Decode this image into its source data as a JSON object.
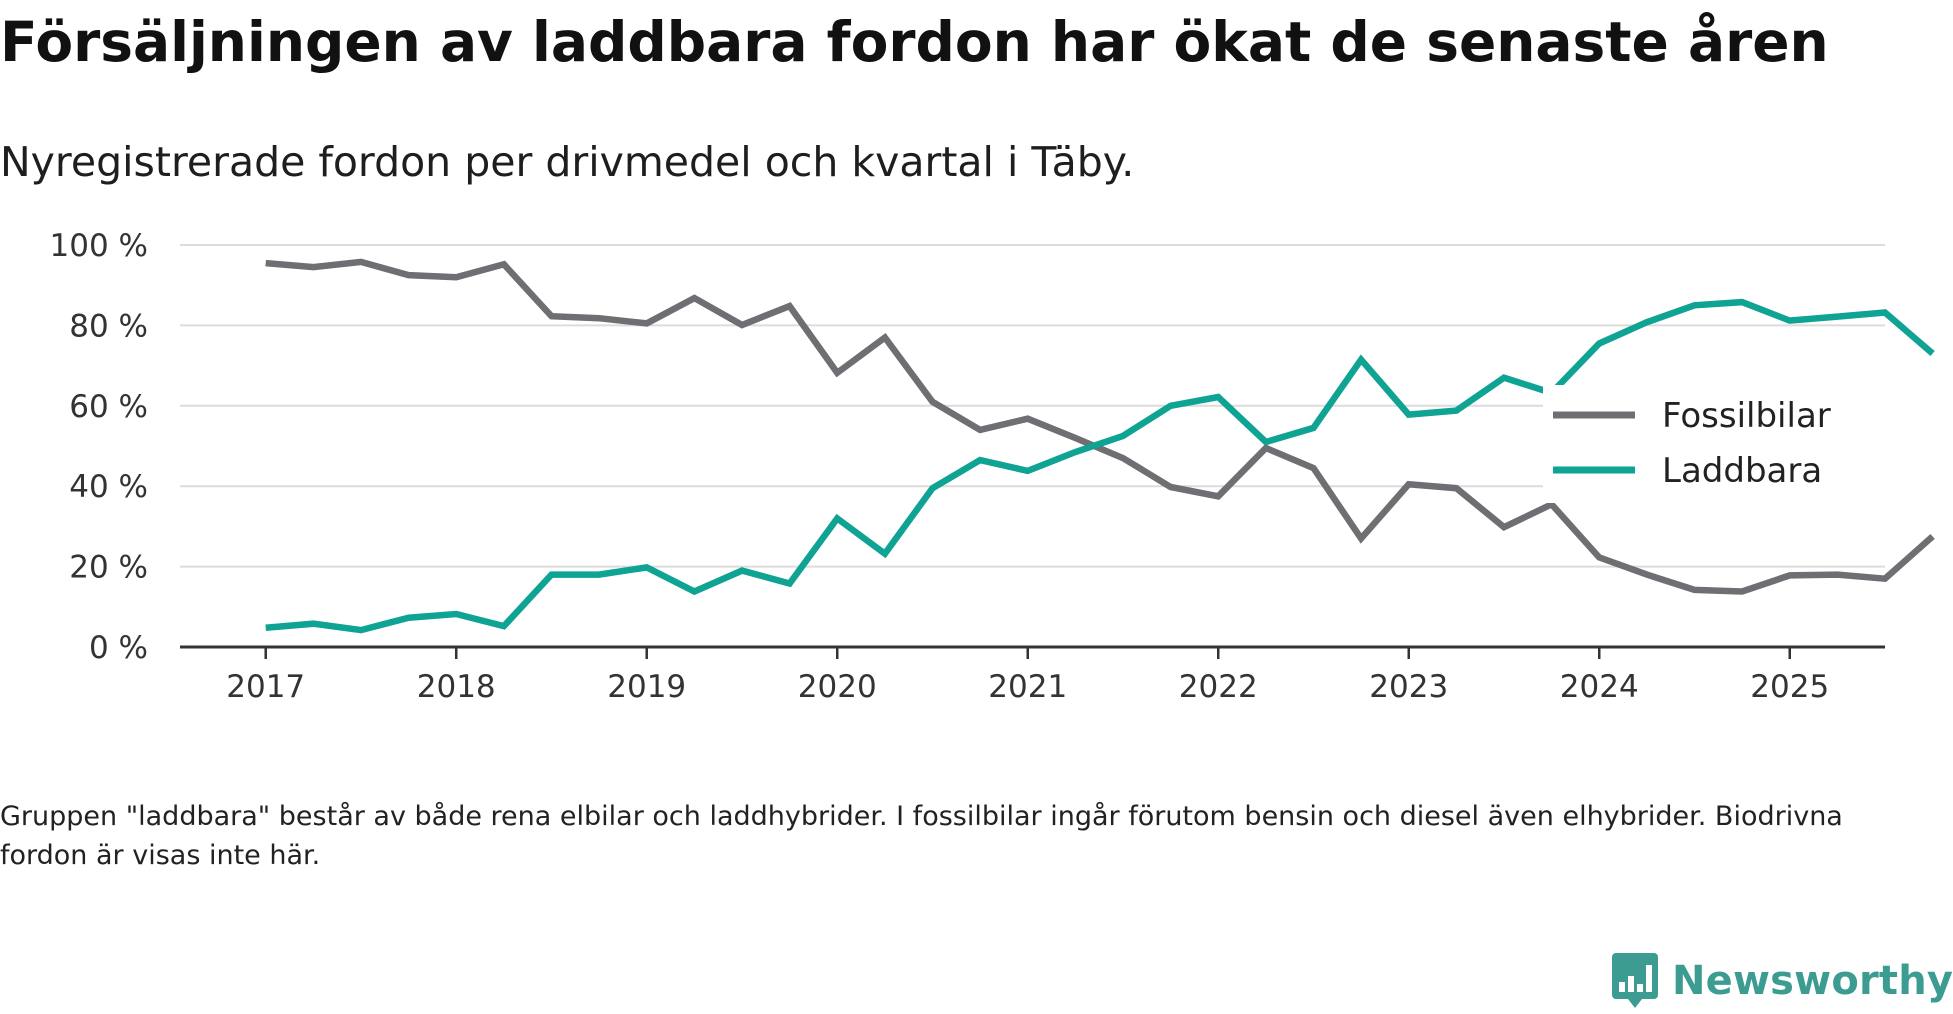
{
  "title": "Försäljningen av laddbara fordon har ökat de senaste åren",
  "subtitle": "Nyregistrerade fordon per drivmedel och kvartal i Täby.",
  "note": "Gruppen \"laddbara\" består av både rena elbilar och laddhybrider. I fossilbilar ingår förutom bensin och diesel även elhybrider. Biodrivna fordon är visas inte här.",
  "brand": {
    "name": "Newsworthy",
    "icon": "bar-chart-bubble-icon",
    "color": "#3d9c91"
  },
  "chart_data": {
    "type": "line",
    "title": "Försäljningen av laddbara fordon har ökat de senaste åren",
    "subtitle": "Nyregistrerade fordon per drivmedel och kvartal i Täby.",
    "xlabel": "",
    "ylabel": "",
    "ylim": [
      0,
      100
    ],
    "y_ticks": [
      0,
      20,
      40,
      60,
      80,
      100
    ],
    "y_tick_labels": [
      "0 %",
      "20 %",
      "40 %",
      "60 %",
      "80 %",
      "100 %"
    ],
    "x_ticks": [
      2017,
      2018,
      2019,
      2020,
      2021,
      2022,
      2023,
      2024,
      2025
    ],
    "x_tick_labels": [
      "2017",
      "2018",
      "2019",
      "2020",
      "2021",
      "2022",
      "2023",
      "2024",
      "2025"
    ],
    "x_range": [
      2016.55,
      2025.5
    ],
    "grid": true,
    "legend_position": "right",
    "x": [
      2017.0,
      2017.25,
      2017.5,
      2017.75,
      2018.0,
      2018.25,
      2018.5,
      2018.75,
      2019.0,
      2019.25,
      2019.5,
      2019.75,
      2020.0,
      2020.25,
      2020.5,
      2020.75,
      2021.0,
      2021.25,
      2021.5,
      2021.75,
      2022.0,
      2022.25,
      2022.5,
      2022.75,
      2023.0,
      2023.25,
      2023.5,
      2023.75,
      2024.0,
      2024.25,
      2024.5,
      2024.75,
      2025.0,
      2025.25,
      2025.5,
      2025.75
    ],
    "series": [
      {
        "name": "Fossilbilar",
        "color": "#6e6e73",
        "values": [
          95.5,
          94.5,
          95.8,
          92.5,
          92,
          95.2,
          82.3,
          81.8,
          80.5,
          86.8,
          80.1,
          84.8,
          68.2,
          77,
          61,
          54,
          56.8,
          52,
          47,
          39.8,
          37.5,
          49.5,
          44.5,
          27,
          40.5,
          39.5,
          29.8,
          35.5,
          22.3,
          18,
          14.2,
          13.8,
          17.8,
          18,
          17,
          27.5
        ]
      },
      {
        "name": "Laddbara",
        "color": "#0fa394",
        "values": [
          4.8,
          5.8,
          4.2,
          7.3,
          8.2,
          5.2,
          18,
          18,
          19.8,
          13.8,
          19,
          15.8,
          32,
          23.2,
          39.5,
          46.5,
          43.8,
          48.5,
          52.5,
          60,
          62.2,
          51,
          54.5,
          71.5,
          57.8,
          58.8,
          67,
          63.2,
          75.5,
          80.8,
          85,
          85.8,
          81.2,
          82.2,
          83.2,
          73
        ]
      }
    ]
  }
}
